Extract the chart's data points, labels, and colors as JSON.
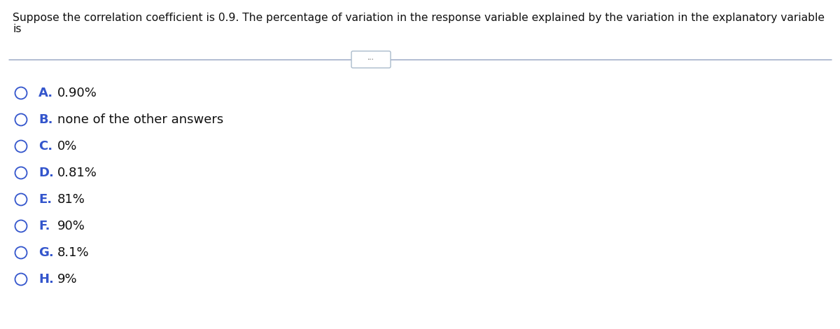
{
  "question_line1": "Suppose the correlation coefficient is 0.9. The percentage of variation in the response variable explained by the variation in the explanatory variable",
  "question_line2": "is",
  "options": [
    {
      "letter": "A.",
      "text": "0.90%"
    },
    {
      "letter": "B.",
      "text": "none of the other answers"
    },
    {
      "letter": "C.",
      "text": "0%"
    },
    {
      "letter": "D.",
      "text": "0.81%"
    },
    {
      "letter": "E.",
      "text": "81%"
    },
    {
      "letter": "F.",
      "text": "90%"
    },
    {
      "letter": "G.",
      "text": "8.1%"
    },
    {
      "letter": "H.",
      "text": "9%"
    }
  ],
  "bg_color": "#ffffff",
  "question_font_size": 11.2,
  "option_letter_font_size": 13.0,
  "option_text_font_size": 13.0,
  "letter_color": "#3355cc",
  "text_color": "#111111",
  "question_color": "#111111",
  "circle_color": "#3355cc",
  "divider_color": "#8899bb",
  "dots_color": "#555555",
  "dots_box_color": "#aabbcc"
}
